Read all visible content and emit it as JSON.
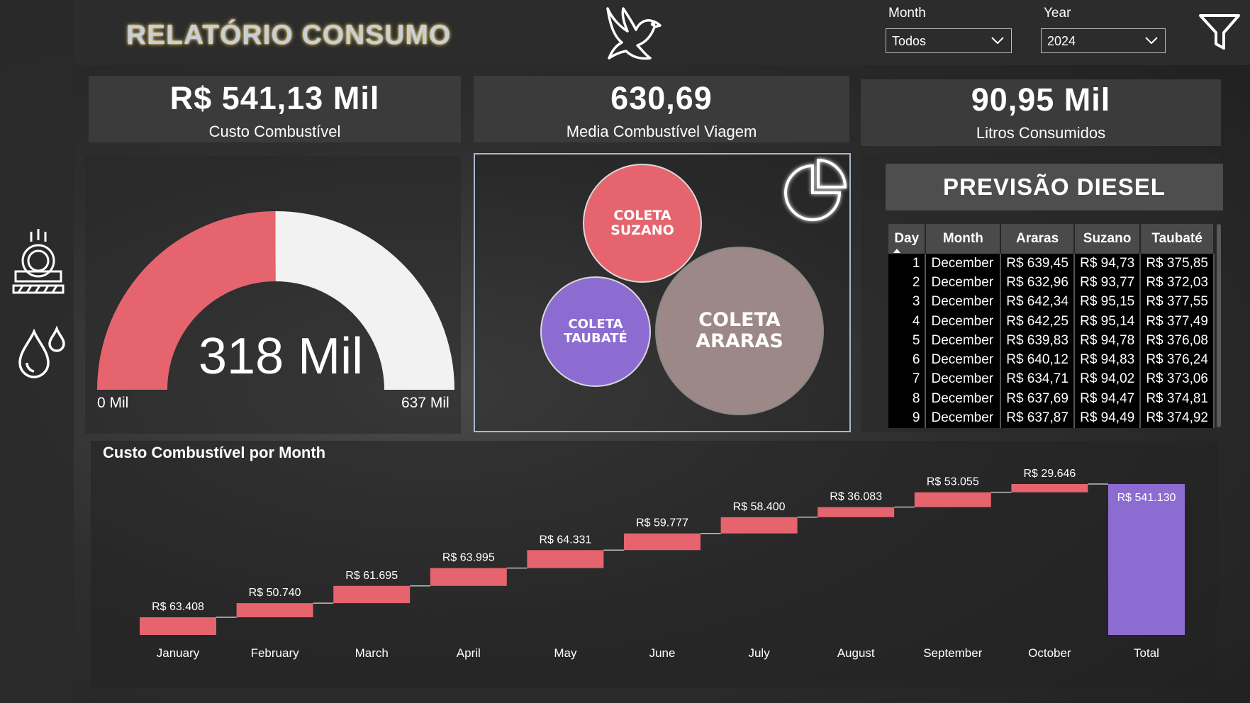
{
  "header": {
    "title": "RELATÓRIO CONSUMO",
    "month_label": "Month",
    "month_value": "Todos",
    "year_label": "Year",
    "year_value": "2024"
  },
  "kpis": {
    "custo": {
      "value": "R$ 541,13 Mil",
      "label": "Custo Combustível"
    },
    "media": {
      "value": "630,69",
      "label": "Media Combustível Viagem"
    },
    "litros": {
      "value": "90,95 Mil",
      "label": "Litros Consumidos"
    }
  },
  "gauge": {
    "value": 318,
    "min": 0,
    "max": 637,
    "value_text": "318 Mil",
    "min_text": "0 Mil",
    "max_text": "637 Mil",
    "fill_color": "#e5646e",
    "track_color": "#f2f2f2"
  },
  "bubbles": [
    {
      "line1": "COLETA",
      "line2": "SUZANO",
      "color": "#e5646e"
    },
    {
      "line1": "COLETA",
      "line2": "TAUBATÉ",
      "color": "#8d6cd1"
    },
    {
      "line1": "COLETA",
      "line2": "ARARAS",
      "color": "#9c8886"
    }
  ],
  "forecast": {
    "title": "PREVISÃO DIESEL",
    "columns": [
      "Day",
      "Month",
      "Araras",
      "Suzano",
      "Taubaté"
    ],
    "rows": [
      [
        "1",
        "December",
        "R$ 639,45",
        "R$ 94,73",
        "R$ 375,85"
      ],
      [
        "2",
        "December",
        "R$ 632,96",
        "R$ 93,77",
        "R$ 372,03"
      ],
      [
        "3",
        "December",
        "R$ 642,34",
        "R$ 95,15",
        "R$ 377,55"
      ],
      [
        "4",
        "December",
        "R$ 642,25",
        "R$ 95,14",
        "R$ 377,49"
      ],
      [
        "5",
        "December",
        "R$ 639,83",
        "R$ 94,78",
        "R$ 376,08"
      ],
      [
        "6",
        "December",
        "R$ 640,12",
        "R$ 94,83",
        "R$ 376,24"
      ],
      [
        "7",
        "December",
        "R$ 634,71",
        "R$ 94,02",
        "R$ 373,06"
      ],
      [
        "8",
        "December",
        "R$ 637,69",
        "R$ 94,47",
        "R$ 374,81"
      ],
      [
        "9",
        "December",
        "R$ 637,87",
        "R$ 94,49",
        "R$ 374,92"
      ]
    ]
  },
  "chart_data": {
    "type": "bar",
    "subtype": "waterfall",
    "title": "Custo Combustível por Month",
    "categories": [
      "January",
      "February",
      "March",
      "April",
      "May",
      "June",
      "July",
      "August",
      "September",
      "October",
      "Total"
    ],
    "values": [
      63408,
      50740,
      61695,
      63995,
      64331,
      59777,
      58400,
      36083,
      53055,
      29646,
      541130
    ],
    "labels": [
      "R$ 63.408",
      "R$ 50.740",
      "R$ 61.695",
      "R$ 63.995",
      "R$ 64.331",
      "R$ 59.777",
      "R$ 58.400",
      "R$ 36.083",
      "R$ 53.055",
      "R$ 29.646",
      "R$ 541.130"
    ],
    "increase_color": "#e5646e",
    "total_color": "#8d6cd1",
    "grid": false
  }
}
